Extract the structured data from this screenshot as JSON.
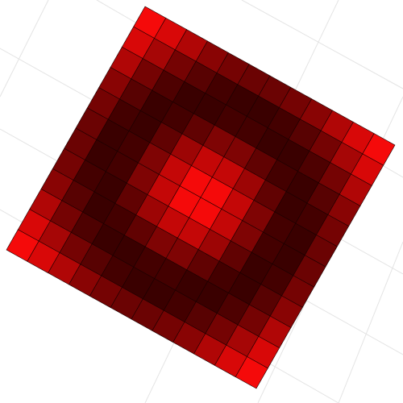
{
  "chart_data": {
    "type": "surface",
    "zlim": [
      -1,
      1
    ],
    "colors": [
      "#3a0000",
      "#ff0a0a"
    ],
    "z": [
      [
        0.9,
        0.6,
        0.2,
        -0.2,
        -0.4,
        -0.5,
        -0.5,
        -0.4,
        -0.2,
        0.2,
        0.6,
        0.9
      ],
      [
        0.6,
        0.1,
        -0.4,
        -0.7,
        -0.9,
        -1.0,
        -1.0,
        -0.9,
        -0.7,
        -0.4,
        0.1,
        0.6
      ],
      [
        0.2,
        -0.4,
        -0.8,
        -1.0,
        -1.0,
        -0.9,
        -0.9,
        -1.0,
        -1.0,
        -0.8,
        -0.4,
        0.2
      ],
      [
        -0.2,
        -0.7,
        -1.0,
        -0.9,
        -0.6,
        -0.3,
        -0.3,
        -0.6,
        -0.9,
        -1.0,
        -0.7,
        -0.2
      ],
      [
        -0.4,
        -0.9,
        -1.0,
        -0.6,
        0.0,
        0.4,
        0.4,
        0.0,
        -0.6,
        -1.0,
        -0.9,
        -0.4
      ],
      [
        -0.5,
        -1.0,
        -0.9,
        -0.3,
        0.4,
        0.9,
        0.9,
        0.4,
        -0.3,
        -0.9,
        -1.0,
        -0.5
      ],
      [
        -0.5,
        -1.0,
        -0.9,
        -0.3,
        0.4,
        0.9,
        0.9,
        0.4,
        -0.3,
        -0.9,
        -1.0,
        -0.5
      ],
      [
        -0.4,
        -0.9,
        -1.0,
        -0.6,
        0.0,
        0.4,
        0.4,
        0.0,
        -0.6,
        -1.0,
        -0.9,
        -0.4
      ],
      [
        -0.2,
        -0.7,
        -1.0,
        -0.9,
        -0.6,
        -0.3,
        -0.3,
        -0.6,
        -0.9,
        -1.0,
        -0.7,
        -0.2
      ],
      [
        0.2,
        -0.4,
        -0.8,
        -1.0,
        -1.0,
        -0.9,
        -0.9,
        -1.0,
        -1.0,
        -0.8,
        -0.4,
        0.2
      ],
      [
        0.6,
        0.1,
        -0.4,
        -0.7,
        -0.9,
        -1.0,
        -1.0,
        -0.9,
        -0.7,
        -0.4,
        0.1,
        0.6
      ],
      [
        0.9,
        0.6,
        0.2,
        -0.2,
        -0.4,
        -0.5,
        -0.5,
        -0.4,
        -0.2,
        0.2,
        0.6,
        0.9
      ]
    ]
  }
}
